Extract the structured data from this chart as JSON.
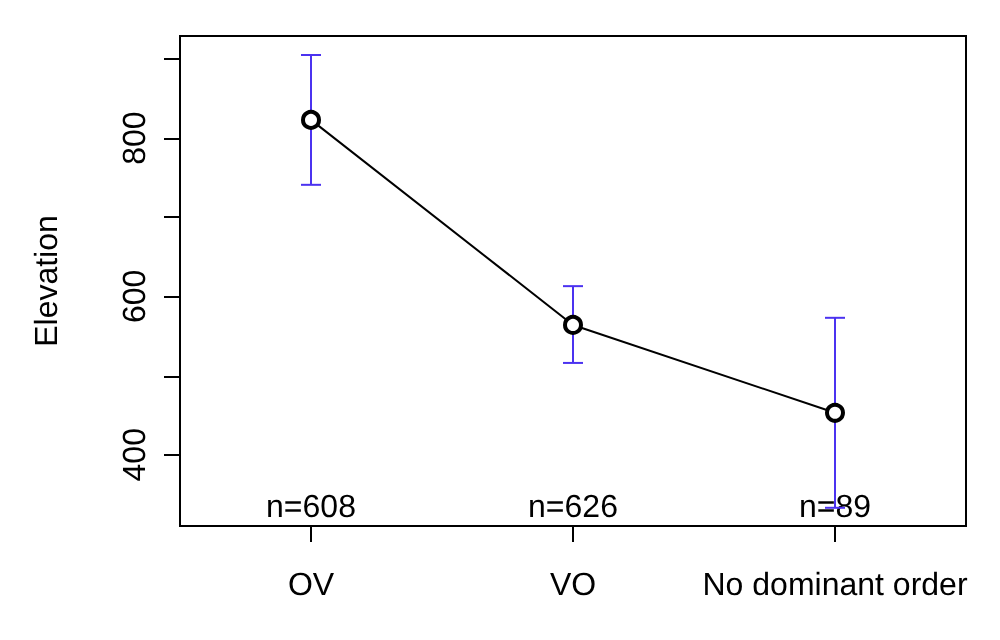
{
  "chart_data": {
    "type": "line",
    "ylabel": "Elevation",
    "categories": [
      "OV",
      "VO",
      "No dominant order"
    ],
    "series": [
      {
        "color": "#000000",
        "values": [
          823,
          564,
          453
        ],
        "errors": [
          [
            741,
            905
          ],
          [
            516,
            613
          ],
          [
            333,
            573
          ]
        ]
      }
    ],
    "ylim": [
      310,
      929
    ],
    "yticks": [
      {
        "value": 400,
        "label": "400"
      },
      {
        "value": 500,
        "label": null
      },
      {
        "value": 600,
        "label": "600"
      },
      {
        "value": 700,
        "label": null
      },
      {
        "value": 800,
        "label": "800"
      },
      {
        "value": 900,
        "label": null
      }
    ],
    "marker": "circle",
    "line_style": "solid",
    "grid": false,
    "annotations": [
      "n=608",
      "n=626",
      "n=89"
    ]
  }
}
